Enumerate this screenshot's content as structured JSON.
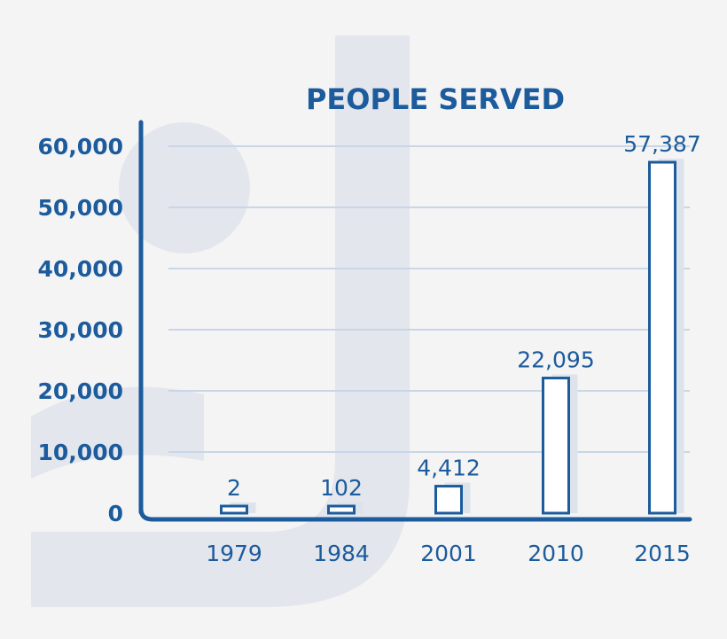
{
  "chart_data": {
    "type": "bar",
    "title": "PEOPLE SERVED",
    "categories": [
      "1979",
      "1984",
      "2001",
      "2010",
      "2015"
    ],
    "values": [
      2,
      102,
      4412,
      22095,
      57387
    ],
    "value_labels": [
      "2",
      "102",
      "4,412",
      "22,095",
      "57,387"
    ],
    "y_ticks": [
      "0",
      "10,000",
      "20,000",
      "30,000",
      "40,000",
      "50,000",
      "60,000"
    ],
    "ylim": [
      0,
      60000
    ],
    "grid": true,
    "colors": {
      "primary": "#1c5b9c",
      "grid": "#c8d6e8",
      "shadow": "#dde3eb",
      "background": "#f4f4f5",
      "watermark": "#e3e6ec"
    }
  }
}
